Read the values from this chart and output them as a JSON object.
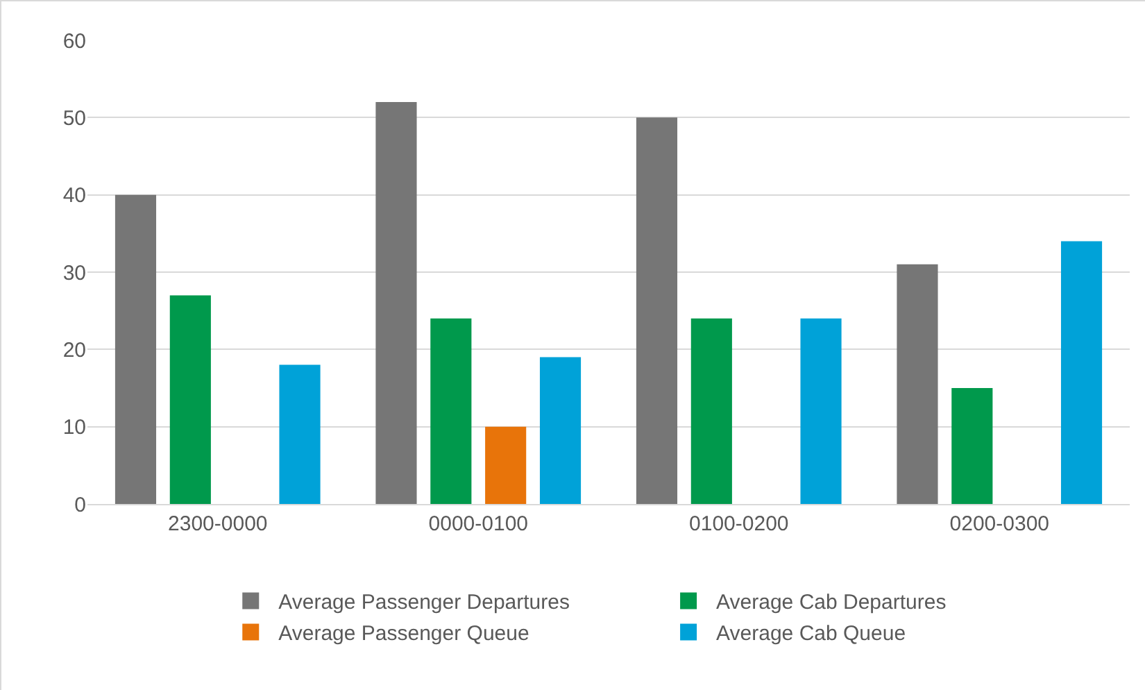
{
  "chart_data": {
    "type": "bar",
    "categories": [
      "2300-0000",
      "0000-0100",
      "0100-0200",
      "0200-0300"
    ],
    "series": [
      {
        "name": "Average Passenger Departures",
        "color": "#767676",
        "values": [
          40,
          52,
          50,
          31
        ]
      },
      {
        "name": "Average Cab Departures",
        "color": "#00994c",
        "values": [
          27,
          24,
          24,
          15
        ]
      },
      {
        "name": "Average Passenger Queue",
        "color": "#e8740a",
        "values": [
          0,
          10,
          0,
          0
        ]
      },
      {
        "name": "Average Cab Queue",
        "color": "#00a2d8",
        "values": [
          18,
          19,
          24,
          34
        ]
      }
    ],
    "ylim": [
      0,
      60
    ],
    "yticks": [
      0,
      10,
      20,
      30,
      40,
      50,
      60
    ],
    "grid": "y",
    "legend": "bottom"
  }
}
